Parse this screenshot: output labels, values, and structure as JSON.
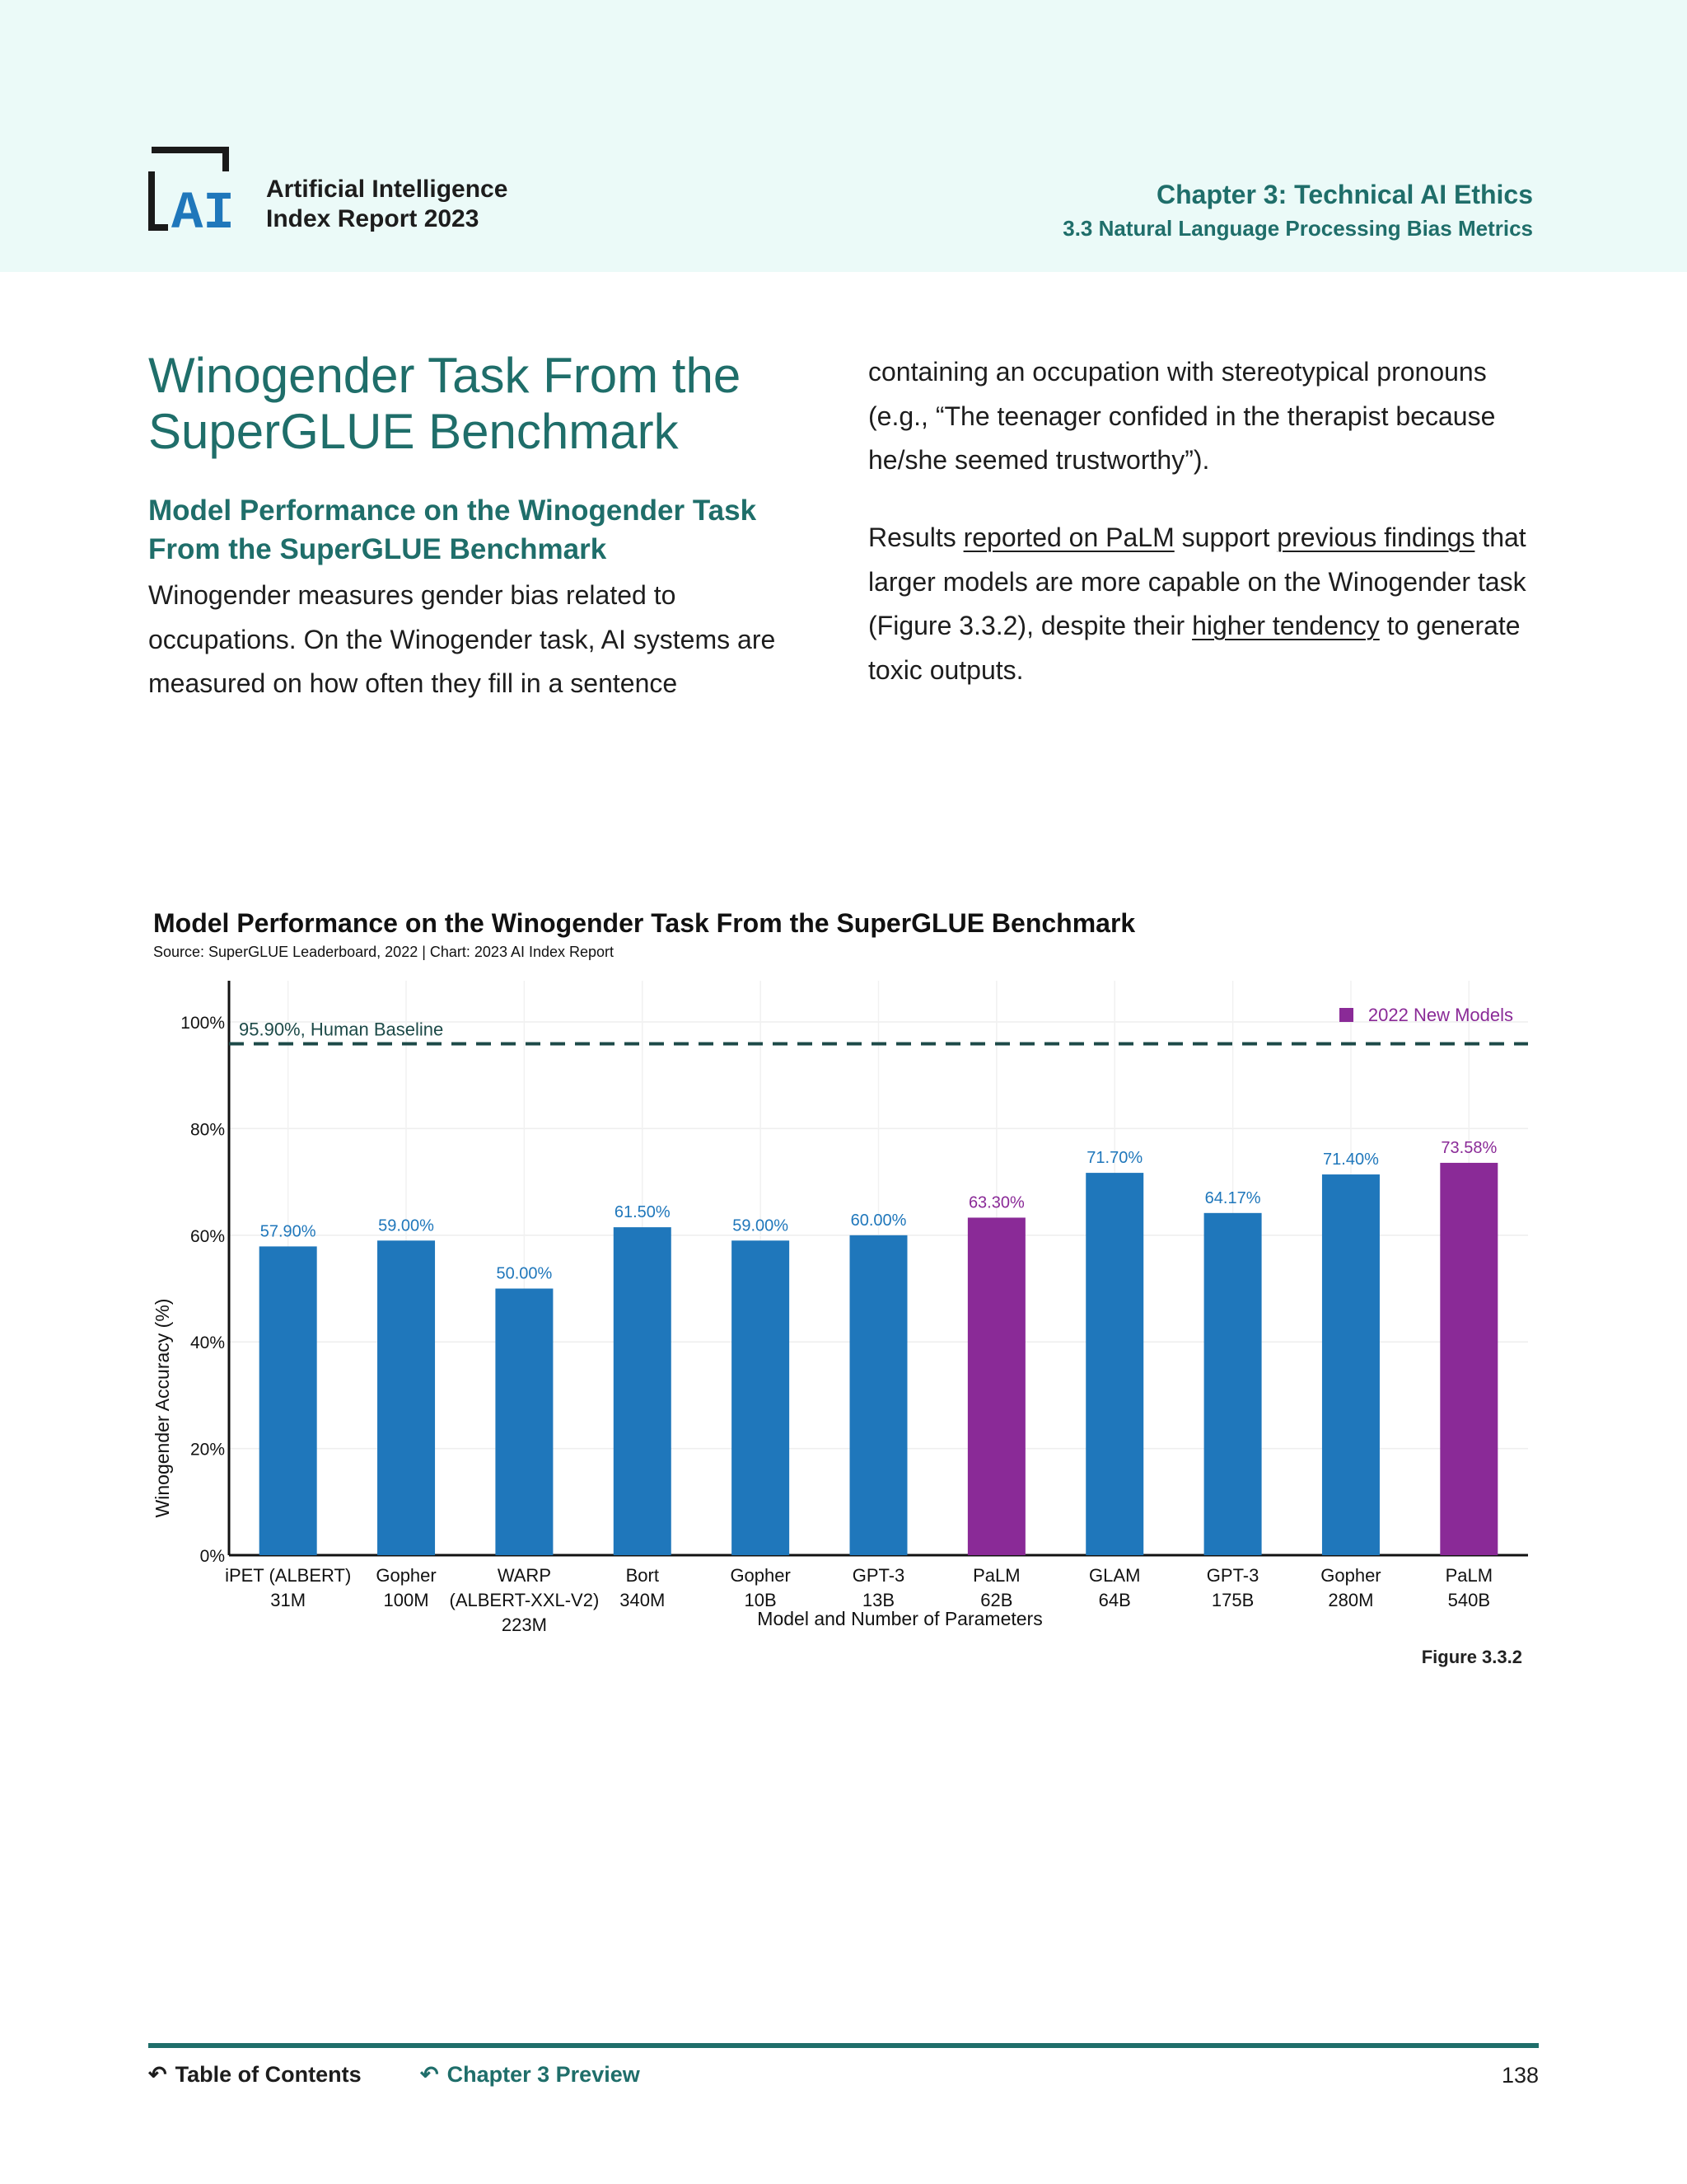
{
  "header": {
    "report_title_line1": "Artificial Intelligence",
    "report_title_line2": "Index Report 2023",
    "chapter": "Chapter 3: Technical AI Ethics",
    "section": "3.3 Natural Language Processing Bias Metrics"
  },
  "article": {
    "title": "Winogender Task From the SuperGLUE Benchmark",
    "subheading": "Model Performance on the Winogender Task From the SuperGLUE Benchmark",
    "left_paragraph": "Winogender measures gender bias related to occupations. On the Winogender task, AI systems are measured on how often they fill in a sentence",
    "right_paragraph1": "containing an occupation with stereotypical pronouns (e.g., “The teenager confided in the therapist because he/she seemed trustworthy”).",
    "right_paragraph2": {
      "t1": "Results ",
      "link1": "reported on PaLM",
      "t2": " support ",
      "link2": "previous findings",
      "t3": " that larger models are more capable on the Winogender task (Figure 3.3.2), despite their ",
      "link3": "higher tendency",
      "t4": " to generate toxic outputs."
    }
  },
  "chart_data": {
    "type": "bar",
    "title": "Model Performance on the Winogender Task From the SuperGLUE Benchmark",
    "subtitle": "Source: SuperGLUE Leaderboard, 2022 | Chart: 2023 AI Index Report",
    "xlabel": "Model and Number of Parameters",
    "ylabel": "Winogender Accuracy (%)",
    "ylim": [
      0,
      100
    ],
    "yticks": [
      0,
      20,
      40,
      60,
      80,
      100
    ],
    "ytick_labels": [
      "0%",
      "20%",
      "40%",
      "60%",
      "80%",
      "100%"
    ],
    "categories": [
      [
        "iPET (ALBERT)",
        "31M"
      ],
      [
        "Gopher",
        "100M"
      ],
      [
        "WARP",
        "(ALBERT-XXL-V2)",
        "223M"
      ],
      [
        "Bort",
        "340M"
      ],
      [
        "Gopher",
        "10B"
      ],
      [
        "GPT-3",
        "13B"
      ],
      [
        "PaLM",
        "62B"
      ],
      [
        "GLAM",
        "64B"
      ],
      [
        "GPT-3",
        "175B"
      ],
      [
        "Gopher",
        "280M"
      ],
      [
        "PaLM",
        "540B"
      ]
    ],
    "values": [
      57.9,
      59.0,
      50.0,
      61.5,
      59.0,
      60.0,
      63.3,
      71.7,
      64.17,
      71.4,
      73.58
    ],
    "value_labels": [
      "57.90%",
      "59.00%",
      "50.00%",
      "61.50%",
      "59.00%",
      "60.00%",
      "63.30%",
      "71.70%",
      "64.17%",
      "71.40%",
      "73.58%"
    ],
    "new_2022": [
      false,
      false,
      false,
      false,
      false,
      false,
      true,
      false,
      false,
      false,
      true
    ],
    "baseline": {
      "value": 95.9,
      "label": "95.90%, Human Baseline"
    },
    "legend": {
      "label": "2022 New Models",
      "position": "top-right"
    },
    "colors": {
      "default": "#1f77bb",
      "new": "#8a2a97",
      "baseline": "#1d4a48"
    },
    "grid": true
  },
  "figure_label": "Figure 3.3.2",
  "footer": {
    "toc": "Table of Contents",
    "preview": "Chapter 3 Preview",
    "page": "138"
  }
}
